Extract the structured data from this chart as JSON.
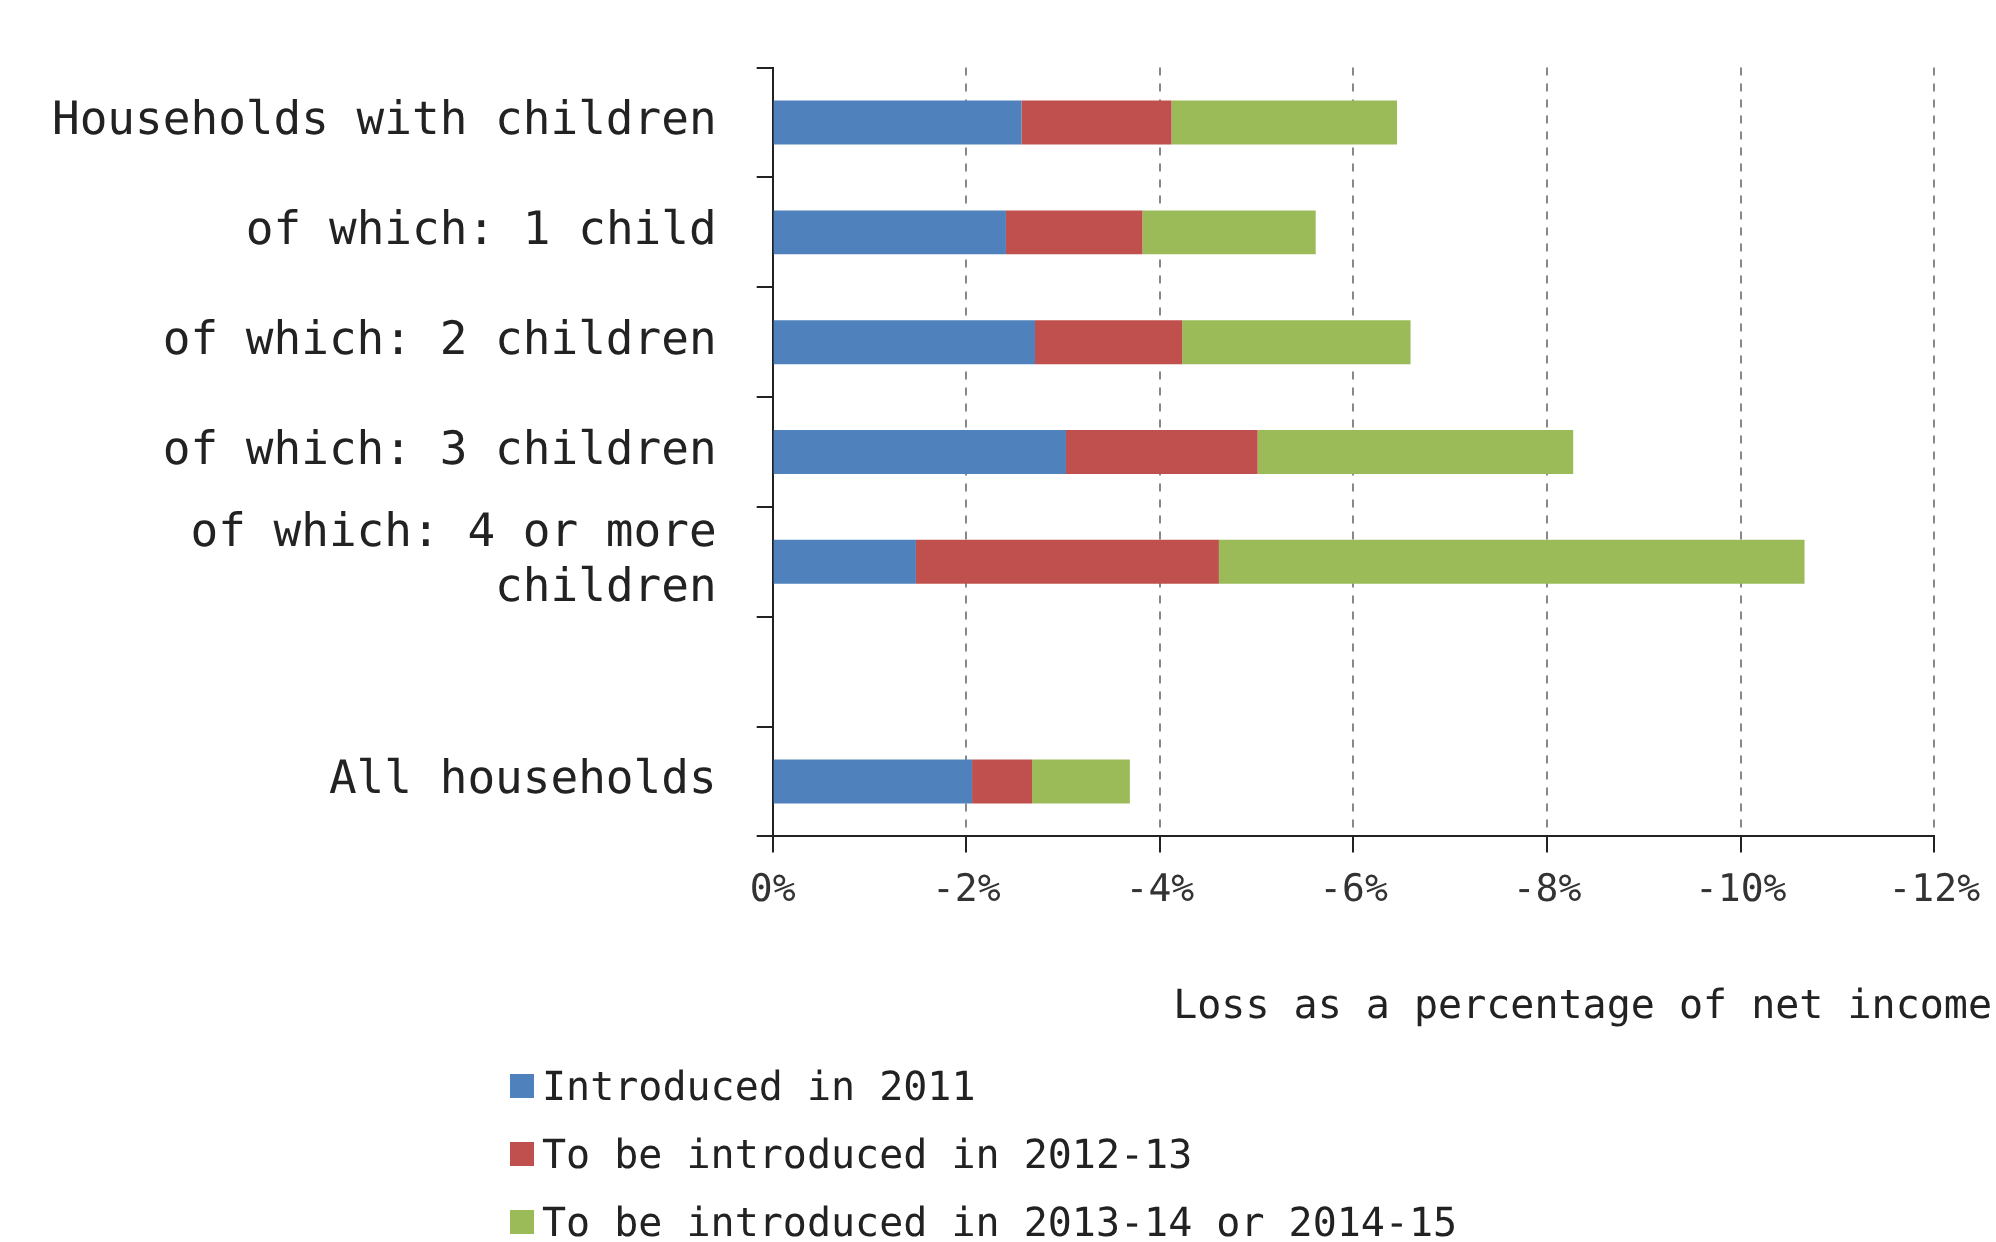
{
  "chart_data": {
    "type": "bar",
    "orientation": "horizontal",
    "stacked": true,
    "xlabel": "Loss as a percentage of net income",
    "categories": [
      "Households with children",
      "of which: 1 child",
      "of which: 2 children",
      "of which: 3 children",
      "of which: 4 or more children",
      null,
      "All households"
    ],
    "series": [
      {
        "name": "Introduced in 2011",
        "color": "#4f81bd",
        "values": [
          -2.57,
          -2.41,
          -2.71,
          -3.03,
          -1.48,
          null,
          -2.06
        ]
      },
      {
        "name": "To be introduced in 2012-13",
        "color": "#c0504d",
        "values": [
          -1.55,
          -1.41,
          -1.52,
          -1.98,
          -3.13,
          null,
          -0.62
        ]
      },
      {
        "name": "To be introduced in 2013-14 or 2014-15",
        "color": "#9bbb59",
        "values": [
          -2.33,
          -1.79,
          -2.36,
          -3.26,
          -6.05,
          null,
          -1.01
        ]
      }
    ],
    "xlim": [
      0,
      -12
    ],
    "xticks": [
      {
        "value": 0,
        "label": "0%"
      },
      {
        "value": -2,
        "label": "-2%"
      },
      {
        "value": -4,
        "label": "-4%"
      },
      {
        "value": -6,
        "label": "-6%"
      },
      {
        "value": -8,
        "label": "-8%"
      },
      {
        "value": -10,
        "label": "-10%"
      },
      {
        "value": -12,
        "label": "-12%"
      }
    ],
    "grid": "x",
    "legend": "bottom left"
  }
}
